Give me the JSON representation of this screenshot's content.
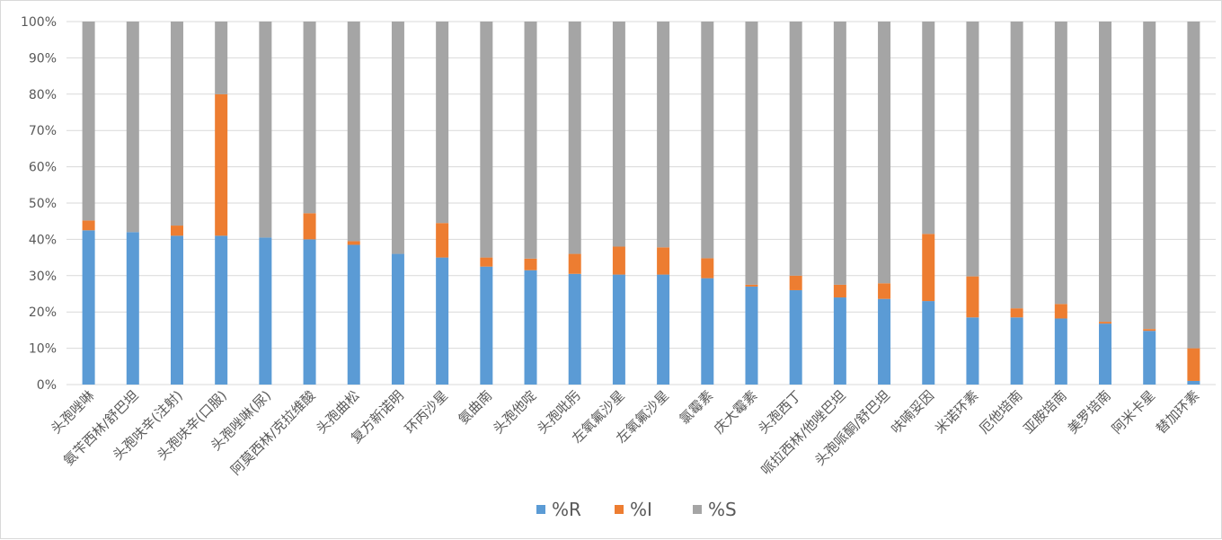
{
  "chart_data": {
    "type": "bar",
    "stacked": true,
    "percent_stacked": true,
    "title": "",
    "xlabel": "",
    "ylabel": "",
    "ylim": [
      0,
      100
    ],
    "y_ticks": [
      "0%",
      "10%",
      "20%",
      "30%",
      "40%",
      "50%",
      "60%",
      "70%",
      "80%",
      "90%",
      "100%"
    ],
    "grid": true,
    "legend_position": "bottom",
    "categories": [
      "头孢唑啉",
      "氨苄西林/舒巴坦",
      "头孢呋辛(注射)",
      "头孢呋辛(口服)",
      "头孢唑啉(尿)",
      "阿莫西林/克拉维酸",
      "头孢曲松",
      "复方新诺明",
      "环丙沙星",
      "氨曲南",
      "头孢他啶",
      "头孢吡肟",
      "左氧氟沙星",
      "左氧氟沙星",
      "氯霉素",
      "庆大霉素",
      "头孢西丁",
      "哌拉西林/他唑巴坦",
      "头孢哌酮/舒巴坦",
      "呋喃妥因",
      "米诺环素",
      "厄他培南",
      "亚胺培南",
      "美罗培南",
      "阿米卡星",
      "替加环素"
    ],
    "series": [
      {
        "name": "%R",
        "color": "#5b9bd5",
        "values": [
          42.5,
          42,
          41,
          41,
          40.5,
          40,
          38.5,
          36,
          35,
          32.5,
          31.5,
          30.5,
          30.3,
          30.3,
          29.3,
          27,
          26,
          24,
          23.6,
          23,
          18.5,
          18.5,
          18.2,
          16.8,
          14.8,
          1
        ]
      },
      {
        "name": "%I",
        "color": "#ed7d31",
        "values": [
          2.7,
          0,
          2.8,
          39,
          0,
          7.2,
          1,
          0,
          9.5,
          2.5,
          3.2,
          5.5,
          7.7,
          7.5,
          5.5,
          0.5,
          4,
          3.5,
          4.3,
          18.5,
          11.3,
          2.5,
          4,
          0.5,
          0.5,
          9
        ]
      },
      {
        "name": "%S",
        "color": "#a5a5a5",
        "values": [
          54.8,
          58,
          56.2,
          20,
          59.5,
          52.8,
          60.5,
          64,
          55.5,
          65,
          65.3,
          64,
          62,
          62.2,
          65.2,
          72.5,
          70,
          72.5,
          72.1,
          58.5,
          70.2,
          79,
          77.8,
          82.7,
          84.7,
          90
        ]
      }
    ]
  }
}
